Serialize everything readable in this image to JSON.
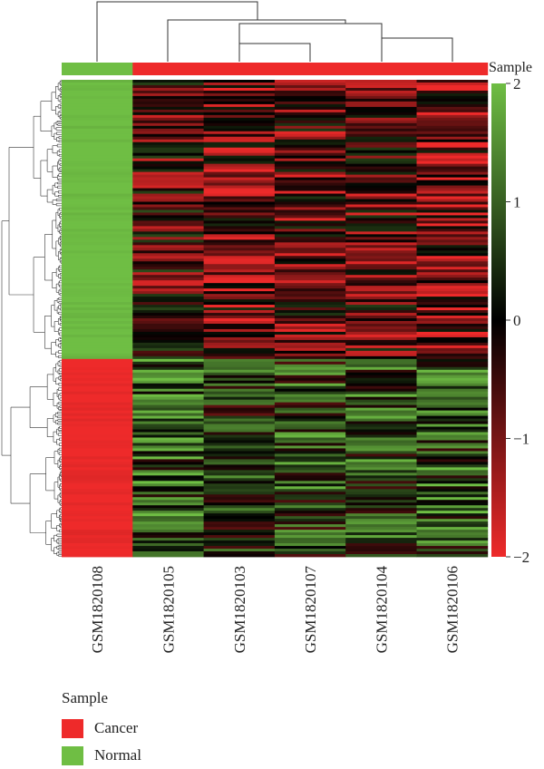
{
  "chart_data": {
    "type": "heatmap",
    "samples": [
      "GSM1820108",
      "GSM1820105",
      "GSM1820103",
      "GSM1820107",
      "GSM1820104",
      "GSM1820106"
    ],
    "sample_groups": [
      "Normal",
      "Cancer",
      "Cancer",
      "Cancer",
      "Cancer",
      "Cancer"
    ],
    "annotation_title": "Sample",
    "legend": {
      "title": "Sample",
      "items": [
        {
          "label": "Cancer",
          "color": "#ee2a2a"
        },
        {
          "label": "Normal",
          "color": "#6fbe44"
        }
      ]
    },
    "colorbar": {
      "ticks": [
        "2",
        "1",
        "0",
        "−1",
        "−2"
      ],
      "tick_values": [
        2,
        1,
        0,
        -1,
        -2
      ],
      "range": [
        -2,
        2
      ],
      "high_color": "#6fbe44",
      "mid_color": "#000000",
      "low_color": "#ee2a2a"
    },
    "column_blocks": [
      {
        "sample": "GSM1820108",
        "upper_gene_cluster_value": 2,
        "lower_gene_cluster_value": -2
      },
      {
        "sample": "GSM1820105",
        "upper_gene_cluster_value": -0.5,
        "lower_gene_cluster_value": 0.9
      },
      {
        "sample": "GSM1820103",
        "upper_gene_cluster_value": -0.8,
        "lower_gene_cluster_value": 0.4
      },
      {
        "sample": "GSM1820107",
        "upper_gene_cluster_value": -0.7,
        "lower_gene_cluster_value": 0.6
      },
      {
        "sample": "GSM1820104",
        "upper_gene_cluster_value": -0.6,
        "lower_gene_cluster_value": 0.7
      },
      {
        "sample": "GSM1820106",
        "upper_gene_cluster_value": -0.9,
        "lower_gene_cluster_value": 0.8
      }
    ]
  }
}
